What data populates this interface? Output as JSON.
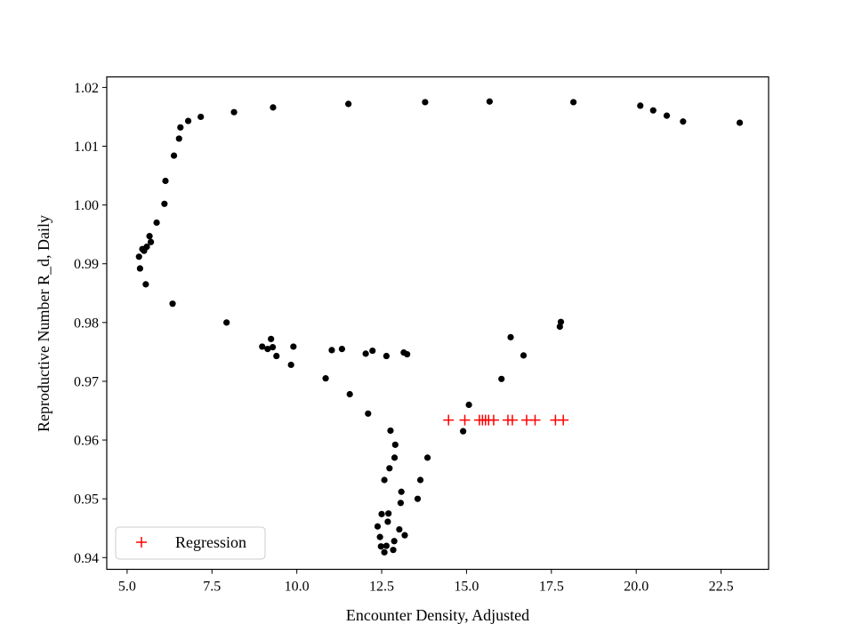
{
  "chart_data": {
    "type": "scatter",
    "title": "",
    "xlabel": "Encounter Density, Adjusted",
    "ylabel": "Reproductive Number R_d, Daily",
    "xlim": [
      4.4,
      23.9
    ],
    "ylim": [
      0.938,
      1.0218
    ],
    "xticks": [
      5.0,
      7.5,
      10.0,
      12.5,
      15.0,
      17.5,
      20.0,
      22.5
    ],
    "xtick_labels": [
      "5.0",
      "7.5",
      "10.0",
      "12.5",
      "15.0",
      "17.5",
      "20.0",
      "22.5"
    ],
    "yticks": [
      0.94,
      0.95,
      0.96,
      0.97,
      0.98,
      0.99,
      1.0,
      1.01,
      1.02
    ],
    "ytick_labels": [
      "0.94",
      "0.95",
      "0.96",
      "0.97",
      "0.98",
      "0.99",
      "1.00",
      "1.01",
      "1.02"
    ],
    "grid": false,
    "legend_position": "lower-left",
    "series": [
      {
        "marker": "circle",
        "color": "#000000",
        "points": [
          [
            5.35,
            0.9912
          ],
          [
            5.38,
            0.9892
          ],
          [
            5.45,
            0.9925
          ],
          [
            5.5,
            0.9922
          ],
          [
            5.58,
            0.9929
          ],
          [
            5.55,
            0.9865
          ],
          [
            5.66,
            0.9947
          ],
          [
            5.7,
            0.9937
          ],
          [
            5.87,
            0.997
          ],
          [
            6.1,
            1.0002
          ],
          [
            6.13,
            1.0041
          ],
          [
            6.34,
            0.9832
          ],
          [
            6.38,
            1.0084
          ],
          [
            6.53,
            1.0113
          ],
          [
            6.57,
            1.0132
          ],
          [
            6.8,
            1.0143
          ],
          [
            7.17,
            1.015
          ],
          [
            7.93,
            0.98
          ],
          [
            8.15,
            1.0158
          ],
          [
            8.98,
            0.9759
          ],
          [
            9.14,
            0.9755
          ],
          [
            9.24,
            0.9772
          ],
          [
            9.29,
            0.9758
          ],
          [
            9.3,
            1.0166
          ],
          [
            9.4,
            0.9743
          ],
          [
            9.83,
            0.9728
          ],
          [
            9.9,
            0.9759
          ],
          [
            10.85,
            0.9705
          ],
          [
            11.03,
            0.9753
          ],
          [
            11.33,
            0.9755
          ],
          [
            11.52,
            1.0172
          ],
          [
            11.56,
            0.9678
          ],
          [
            12.03,
            0.9747
          ],
          [
            12.1,
            0.9645
          ],
          [
            12.23,
            0.9752
          ],
          [
            12.38,
            0.9453
          ],
          [
            12.45,
            0.9435
          ],
          [
            12.48,
            0.9419
          ],
          [
            12.5,
            0.9474
          ],
          [
            12.58,
            0.9532
          ],
          [
            12.58,
            0.9409
          ],
          [
            12.64,
            0.9743
          ],
          [
            12.64,
            0.942
          ],
          [
            12.68,
            0.9461
          ],
          [
            12.7,
            0.9475
          ],
          [
            12.73,
            0.9552
          ],
          [
            12.76,
            0.9616
          ],
          [
            12.84,
            0.9413
          ],
          [
            12.87,
            0.9428
          ],
          [
            12.88,
            0.957
          ],
          [
            12.9,
            0.9592
          ],
          [
            13.02,
            0.9448
          ],
          [
            13.06,
            0.9493
          ],
          [
            13.08,
            0.9512
          ],
          [
            13.15,
            0.9749
          ],
          [
            13.18,
            0.9438
          ],
          [
            13.25,
            0.9746
          ],
          [
            13.56,
            0.95
          ],
          [
            13.64,
            0.9532
          ],
          [
            13.78,
            1.0175
          ],
          [
            13.85,
            0.957
          ],
          [
            14.9,
            0.9615
          ],
          [
            15.07,
            0.966
          ],
          [
            15.68,
            1.0176
          ],
          [
            16.03,
            0.9704
          ],
          [
            16.3,
            0.9775
          ],
          [
            16.68,
            0.9744
          ],
          [
            17.75,
            0.9793
          ],
          [
            17.78,
            0.9801
          ],
          [
            18.15,
            1.0175
          ],
          [
            20.12,
            1.0169
          ],
          [
            20.5,
            1.0161
          ],
          [
            20.9,
            1.0152
          ],
          [
            21.38,
            1.0142
          ],
          [
            23.05,
            1.014
          ]
        ]
      },
      {
        "name": "Regression",
        "marker": "plus",
        "color": "#ff0000",
        "points": [
          [
            14.47,
            0.9634
          ],
          [
            14.95,
            0.9634
          ],
          [
            15.38,
            0.9634
          ],
          [
            15.47,
            0.9634
          ],
          [
            15.56,
            0.9634
          ],
          [
            15.65,
            0.9634
          ],
          [
            15.8,
            0.9634
          ],
          [
            16.22,
            0.9634
          ],
          [
            16.35,
            0.9634
          ],
          [
            16.77,
            0.9634
          ],
          [
            17.02,
            0.9634
          ],
          [
            17.62,
            0.9634
          ],
          [
            17.85,
            0.9634
          ]
        ]
      }
    ],
    "legend": [
      {
        "label": "Regression",
        "marker": "plus",
        "color": "#ff0000"
      }
    ]
  }
}
